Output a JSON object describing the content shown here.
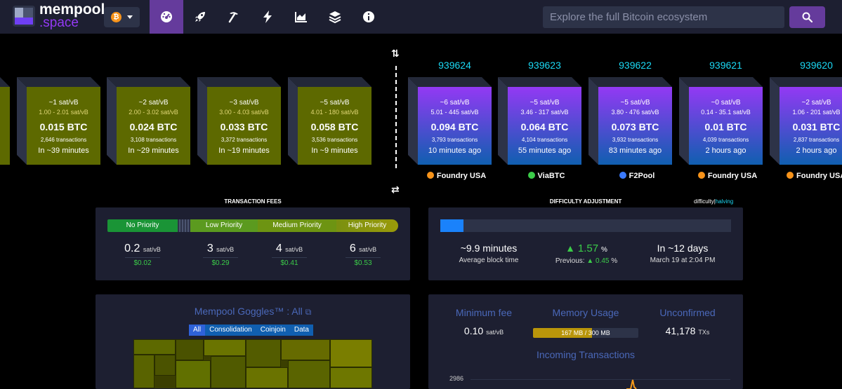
{
  "brand": {
    "line1": "mempool",
    "line2": ".space"
  },
  "nav": {
    "network_symbol": "₿",
    "items": [
      "dashboard-icon",
      "rocket-icon",
      "mining-pick-icon",
      "lightning-icon",
      "chart-icon",
      "layers-icon",
      "info-icon"
    ],
    "active_index": 0
  },
  "search": {
    "placeholder": "Explore the full Bitcoin ecosystem"
  },
  "mempool_blocks": [
    {
      "fee": "~1 sat/vB",
      "range": "1.00 - 2.01 sat/vB",
      "total": "0.015 BTC",
      "txs": "2,646 transactions",
      "eta": "In ~39 minutes"
    },
    {
      "fee": "~2 sat/vB",
      "range": "2.00 - 3.02 sat/vB",
      "total": "0.024 BTC",
      "txs": "3,108 transactions",
      "eta": "In ~29 minutes"
    },
    {
      "fee": "~3 sat/vB",
      "range": "3.00 - 4.03 sat/vB",
      "total": "0.033 BTC",
      "txs": "3,372 transactions",
      "eta": "In ~19 minutes"
    },
    {
      "fee": "~5 sat/vB",
      "range": "4.01 - 180 sat/vB",
      "total": "0.058 BTC",
      "txs": "3,536 transactions",
      "eta": "In ~9 minutes"
    }
  ],
  "mined_blocks": [
    {
      "height": "939624",
      "fee": "~6 sat/vB",
      "range": "5.01 - 445 sat/vB",
      "total": "0.094 BTC",
      "txs": "3,793 transactions",
      "age": "10 minutes ago",
      "miner": "Foundry USA",
      "miner_color": "#f7931a"
    },
    {
      "height": "939623",
      "fee": "~5 sat/vB",
      "range": "3.46 - 317 sat/vB",
      "total": "0.064 BTC",
      "txs": "4,104 transactions",
      "age": "55 minutes ago",
      "miner": "ViaBTC",
      "miner_color": "#3bcc49"
    },
    {
      "height": "939622",
      "fee": "~5 sat/vB",
      "range": "3.80 - 476 sat/vB",
      "total": "0.073 BTC",
      "txs": "3,932 transactions",
      "age": "83 minutes ago",
      "miner": "F2Pool",
      "miner_color": "#3a7afe"
    },
    {
      "height": "939621",
      "fee": "~0 sat/vB",
      "range": "0.14 - 35.1 sat/vB",
      "total": "0.01 BTC",
      "txs": "4,039 transactions",
      "age": "2 hours ago",
      "miner": "Foundry USA",
      "miner_color": "#f7931a"
    },
    {
      "height": "939620",
      "fee": "~2 sat/vB",
      "range": "1.06 - 201 sat/vB",
      "total": "0.031 BTC",
      "txs": "2,837 transactions",
      "age": "2 hours ago",
      "miner": "Foundry USA",
      "miner_color": "#f7931a"
    }
  ],
  "tx_fees": {
    "title": "TRANSACTION FEES",
    "labels": {
      "none": "No Priority",
      "low": "Low Priority",
      "medium": "Medium Priority",
      "high": "High Priority"
    },
    "values": [
      {
        "n": "0.2",
        "u": "sat/vB",
        "usd": "$0.02"
      },
      {
        "n": "3",
        "u": "sat/vB",
        "usd": "$0.29"
      },
      {
        "n": "4",
        "u": "sat/vB",
        "usd": "$0.41"
      },
      {
        "n": "6",
        "u": "sat/vB",
        "usd": "$0.53"
      }
    ]
  },
  "difficulty": {
    "title": "DIFFICULTY ADJUSTMENT",
    "toggle_a": "difficulty",
    "toggle_sep": "|",
    "toggle_b": "halving",
    "progress": 0.08,
    "avg_time": "~9.9 minutes",
    "avg_label": "Average block time",
    "change": "1.57",
    "change_unit": "%",
    "previous_label": "Previous:",
    "previous": "0.45",
    "previous_unit": "%",
    "eta": "In ~12 days",
    "eta_date": "March 19 at 2:04 PM"
  },
  "goggles": {
    "title": "Mempool Goggles™ : All",
    "tabs": [
      "All",
      "Consolidation",
      "Coinjoin",
      "Data"
    ],
    "active_tab": 0
  },
  "stats": {
    "min_fee_label": "Minimum fee",
    "min_fee": "0.10",
    "min_fee_unit": "sat/vB",
    "memory_label": "Memory Usage",
    "memory_text": "167 MB / 300 MB",
    "memory_fraction": 0.557,
    "unconfirmed_label": "Unconfirmed",
    "unconfirmed": "41,178",
    "unconfirmed_unit": "TXs",
    "incoming_label": "Incoming Transactions",
    "incoming_ytick": "2986"
  }
}
